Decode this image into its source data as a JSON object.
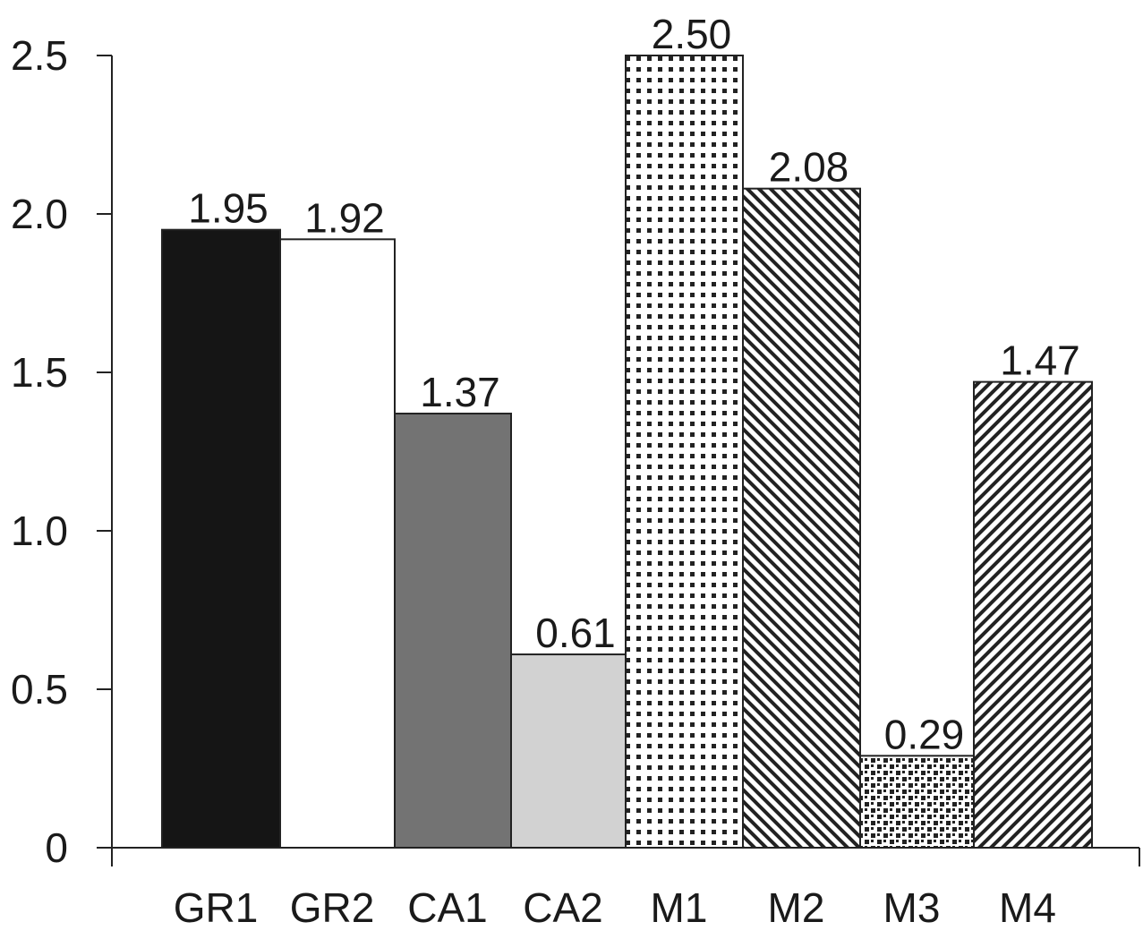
{
  "chart_data": {
    "type": "bar",
    "title": "",
    "xlabel": "",
    "ylabel": "",
    "categories": [
      "GR1",
      "GR2",
      "CA1",
      "CA2",
      "M1",
      "M2",
      "M3",
      "M4"
    ],
    "values": [
      1.95,
      1.92,
      1.37,
      0.61,
      2.5,
      2.08,
      0.29,
      1.47
    ],
    "value_labels": [
      "1.95",
      "1.92",
      "1.37",
      "0.61",
      "2.50",
      "2.08",
      "0.29",
      "1.47"
    ],
    "fills": [
      "solid-black",
      "solid-white",
      "solid-dark-gray",
      "solid-light-gray",
      "dots",
      "diagonal-down",
      "checker",
      "diagonal-up"
    ],
    "colors": {
      "black": "#151515",
      "white": "#ffffff",
      "dark_gray": "#737373",
      "light_gray": "#d2d2d2"
    },
    "ylim": [
      0,
      2.5
    ],
    "yticks": [
      0,
      0.5,
      1.0,
      1.5,
      2.0,
      2.5
    ],
    "ytick_labels": [
      "0",
      "0.5",
      "1.0",
      "1.5",
      "2.0",
      "2.5"
    ],
    "grid": false,
    "legend": "none"
  }
}
